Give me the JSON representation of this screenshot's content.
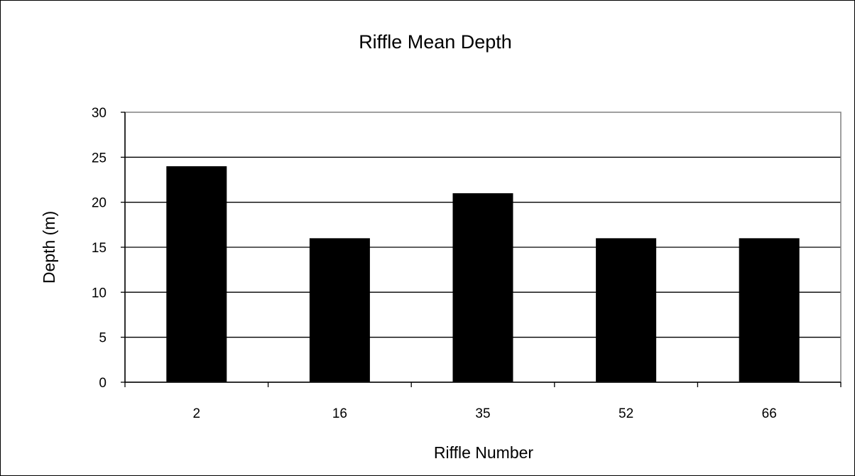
{
  "chart_data": {
    "type": "bar",
    "title": "Riffle Mean Depth",
    "xlabel": "Riffle Number",
    "ylabel": "Depth (m)",
    "categories": [
      "2",
      "16",
      "35",
      "52",
      "66"
    ],
    "series": [
      {
        "values": [
          24,
          16,
          21,
          16,
          16
        ]
      }
    ],
    "ylim": [
      0,
      30
    ],
    "yticks": [
      0,
      5,
      10,
      15,
      20,
      25,
      30
    ],
    "grid": true,
    "legend": "none",
    "bar_color": "#000000",
    "grid_color": "#000000",
    "plot_border_color": "#808080"
  }
}
